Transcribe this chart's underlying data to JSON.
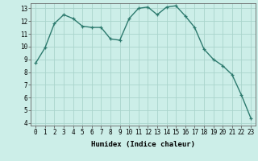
{
  "x": [
    0,
    1,
    2,
    3,
    4,
    5,
    6,
    7,
    8,
    9,
    10,
    11,
    12,
    13,
    14,
    15,
    16,
    17,
    18,
    19,
    20,
    21,
    22,
    23
  ],
  "y": [
    8.7,
    9.9,
    11.8,
    12.5,
    12.2,
    11.6,
    11.5,
    11.5,
    10.6,
    10.5,
    12.2,
    13.0,
    13.1,
    12.5,
    13.1,
    13.2,
    12.4,
    11.5,
    9.8,
    9.0,
    8.5,
    7.8,
    6.2,
    4.4
  ],
  "line_color": "#2d7a6e",
  "marker": "+",
  "marker_size": 3,
  "bg_color": "#cceee8",
  "grid_color": "#aad4cc",
  "xlabel": "Humidex (Indice chaleur)",
  "ylim": [
    3.8,
    13.4
  ],
  "xlim": [
    -0.5,
    23.5
  ],
  "yticks": [
    4,
    5,
    6,
    7,
    8,
    9,
    10,
    11,
    12,
    13
  ],
  "xticks": [
    0,
    1,
    2,
    3,
    4,
    5,
    6,
    7,
    8,
    9,
    10,
    11,
    12,
    13,
    14,
    15,
    16,
    17,
    18,
    19,
    20,
    21,
    22,
    23
  ],
  "xlabel_fontsize": 6.5,
  "tick_fontsize": 5.5,
  "line_width": 1.0,
  "marker_edge_width": 0.9
}
